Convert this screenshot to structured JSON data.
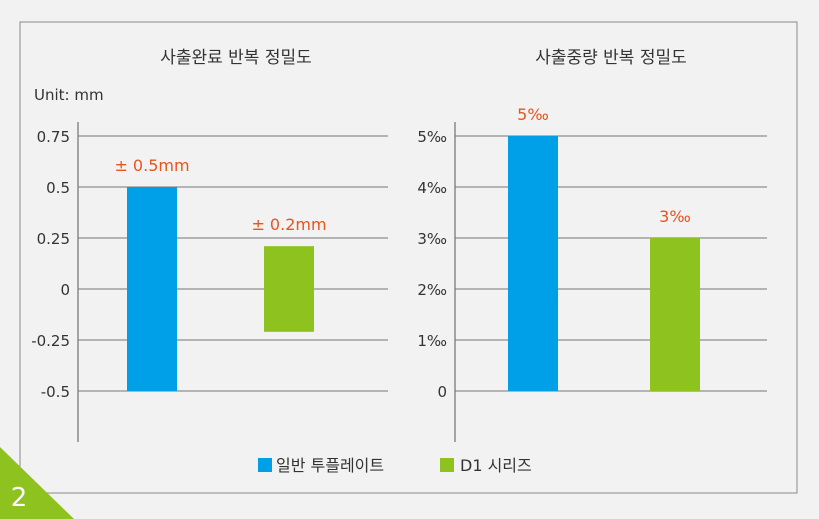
{
  "badge": {
    "number": "2",
    "color": "#8dc21f"
  },
  "legend": {
    "items": [
      {
        "label": "일반 투플레이트",
        "color": "#00a0e9"
      },
      {
        "label": "D1 시리즈",
        "color": "#8dc21f"
      }
    ]
  },
  "chart_data": [
    {
      "type": "bar",
      "title": "사출완료 반복 정밀도",
      "unit_label": "Unit: mm",
      "xlabel": "",
      "ylabel": "",
      "categories": [
        "일반 투플레이트",
        "D1 시리즈"
      ],
      "bars": [
        {
          "low": -0.5,
          "high": 0.5,
          "label": "± 0.5mm",
          "color": "#00a0e9"
        },
        {
          "low": -0.21,
          "high": 0.21,
          "label": "± 0.2mm",
          "color": "#8dc21f"
        }
      ],
      "yticks": [
        0.75,
        0.5,
        0.25,
        0,
        -0.25,
        -0.5
      ],
      "ytick_labels": [
        "0.75",
        "0.5",
        "0.25",
        "0",
        "-0.25",
        "-0.5"
      ],
      "ylim": [
        -0.75,
        0.75
      ],
      "label_color": "#e8541c",
      "grid": true
    },
    {
      "type": "bar",
      "title": "사출중량 반복 정밀도",
      "xlabel": "",
      "ylabel": "",
      "categories": [
        "일반 투플레이트",
        "D1 시리즈"
      ],
      "bars": [
        {
          "low": 0,
          "high": 5,
          "label": "5‰",
          "color": "#00a0e9"
        },
        {
          "low": 0,
          "high": 3,
          "label": "3‰",
          "color": "#8dc21f"
        }
      ],
      "yticks": [
        5,
        4,
        3,
        2,
        1,
        0
      ],
      "ytick_labels": [
        "5‰",
        "4‰",
        "3‰",
        "2‰",
        "1‰",
        "0"
      ],
      "ylim": [
        -1,
        5
      ],
      "label_color": "#e8541c",
      "grid": true
    }
  ]
}
